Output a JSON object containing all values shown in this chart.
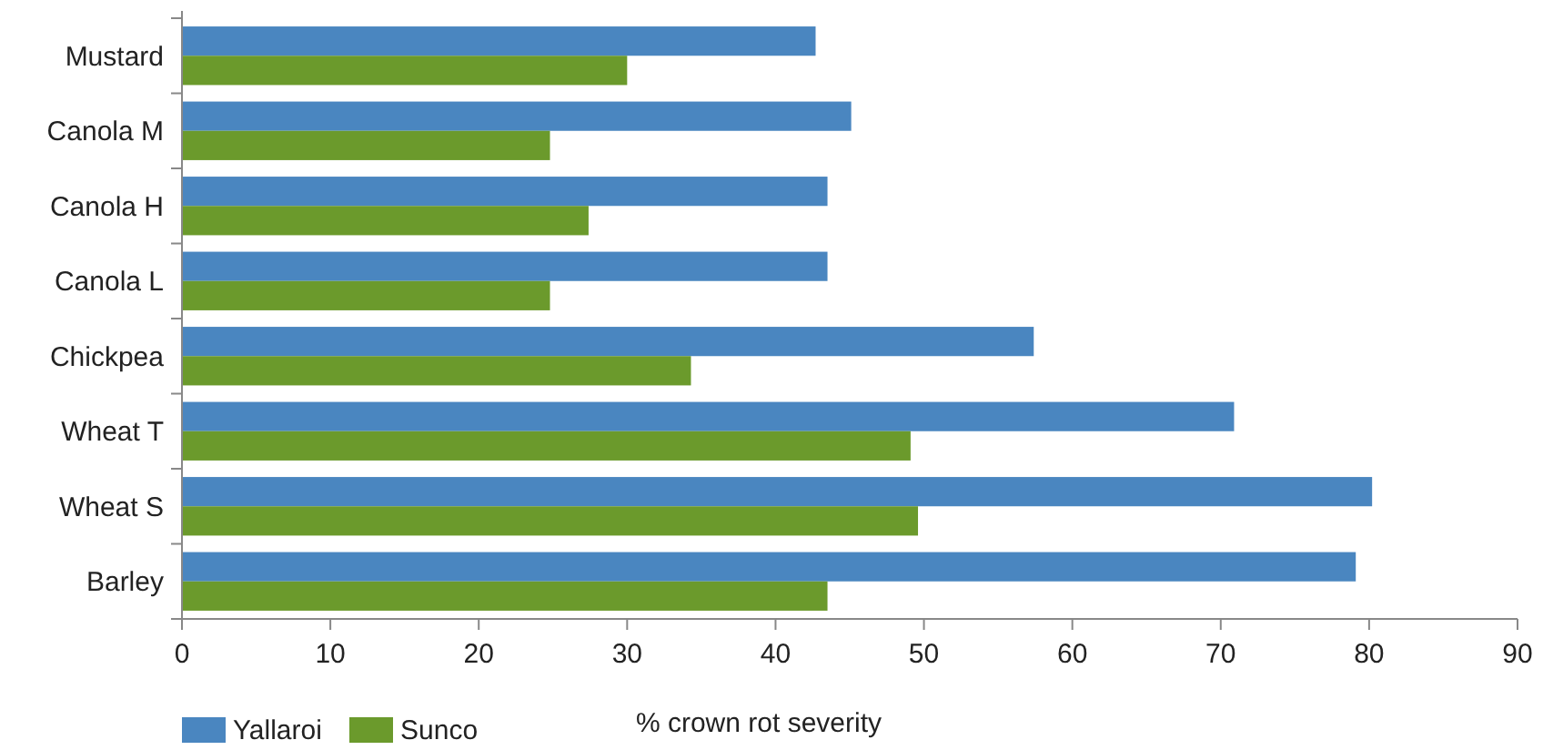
{
  "chart_data": {
    "type": "bar",
    "orientation": "horizontal",
    "xlabel": "% crown rot severity",
    "categories": [
      "Mustard",
      "Canola M",
      "Canola H",
      "Canola L",
      "Chickpea",
      "Wheat T",
      "Wheat S",
      "Barley"
    ],
    "series": [
      {
        "name": "Yallaroi",
        "color": "#4a86c0",
        "values": [
          42.7,
          45.1,
          43.5,
          43.5,
          57.4,
          70.9,
          80.2,
          79.1
        ]
      },
      {
        "name": "Sunco",
        "color": "#6b9a2c",
        "values": [
          30.0,
          24.8,
          27.4,
          24.8,
          34.3,
          49.1,
          49.6,
          43.5
        ]
      }
    ],
    "xlim": [
      0,
      90
    ],
    "xticks": [
      0,
      10,
      20,
      30,
      40,
      50,
      60,
      70,
      80,
      90
    ],
    "grid": false,
    "legend": "bottom left"
  }
}
